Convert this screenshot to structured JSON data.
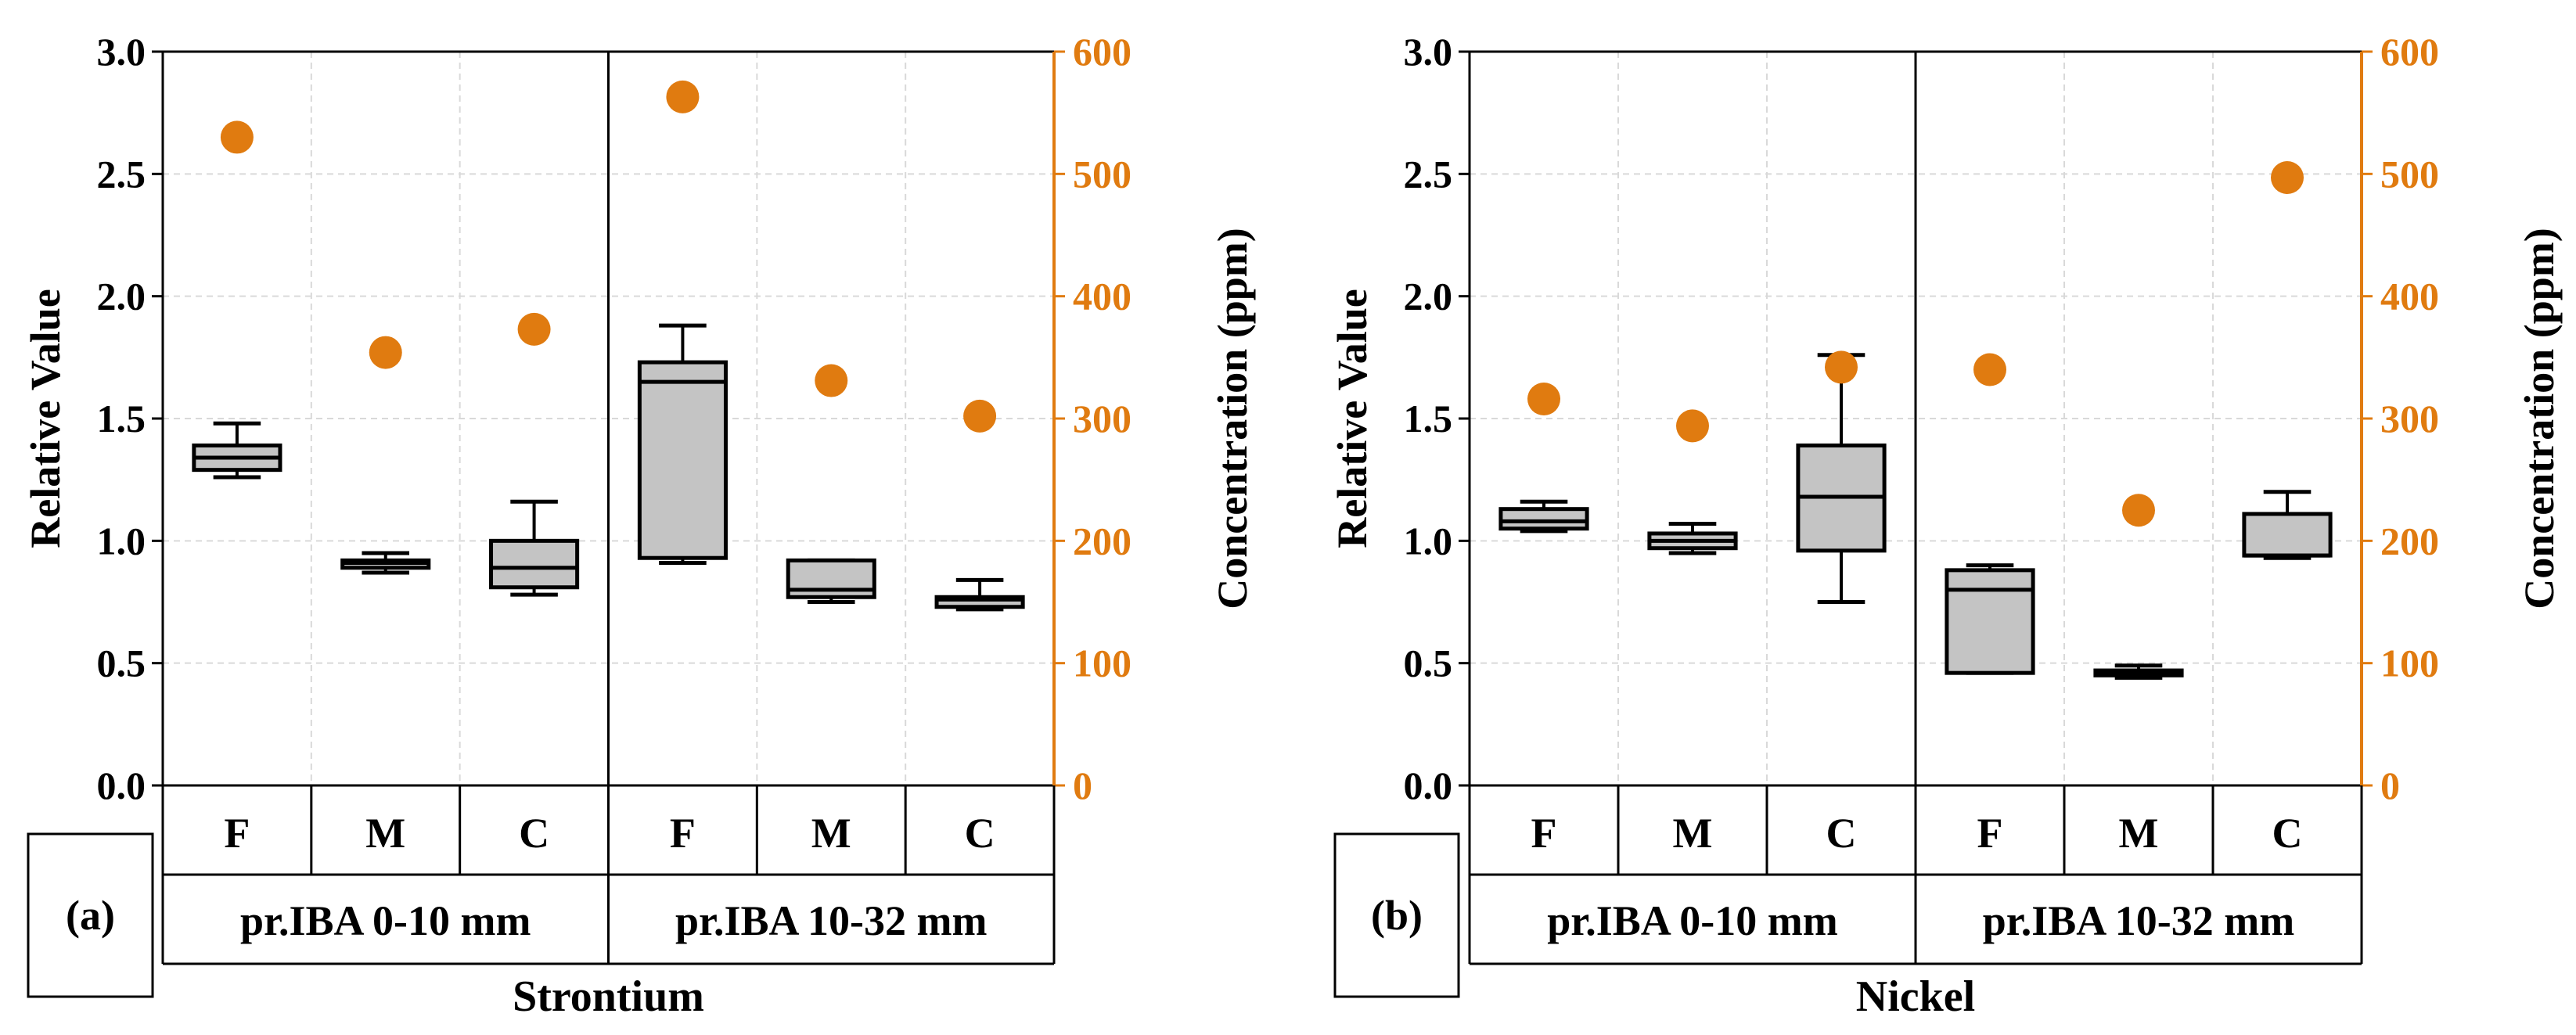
{
  "chart_data": [
    {
      "type": "box",
      "panel_label": "(a)",
      "title": "Strontium",
      "ylabel_left": "Relative Value",
      "ylabel_right": "Concentration (ppm)",
      "ylim_left": [
        0,
        3.0
      ],
      "ylim_right": [
        0,
        600
      ],
      "yticks_left": [
        "0.0",
        "0.5",
        "1.0",
        "1.5",
        "2.0",
        "2.5",
        "3.0"
      ],
      "yticks_right": [
        "0",
        "100",
        "200",
        "300",
        "400",
        "500",
        "600"
      ],
      "groups": [
        "pr.IBA 0-10 mm",
        "pr.IBA 10-32 mm"
      ],
      "categories": [
        "F",
        "M",
        "C",
        "F",
        "M",
        "C"
      ],
      "boxes": [
        {
          "min": 1.26,
          "q1": 1.29,
          "median": 1.34,
          "q3": 1.39,
          "max": 1.48
        },
        {
          "min": 0.87,
          "q1": 0.89,
          "median": 0.91,
          "q3": 0.92,
          "max": 0.95
        },
        {
          "min": 0.78,
          "q1": 0.81,
          "median": 0.89,
          "q3": 1.0,
          "max": 1.16
        },
        {
          "min": 0.91,
          "q1": 0.93,
          "median": 1.65,
          "q3": 1.73,
          "max": 1.88
        },
        {
          "min": 0.75,
          "q1": 0.77,
          "median": 0.8,
          "q3": 0.92,
          "max": 0.92
        },
        {
          "min": 0.72,
          "q1": 0.73,
          "median": 0.76,
          "q3": 0.77,
          "max": 0.84
        }
      ],
      "concentration": [
        530,
        354,
        373,
        563,
        331,
        302
      ]
    },
    {
      "type": "box",
      "panel_label": "(b)",
      "title": "Nickel",
      "ylabel_left": "Relative Value",
      "ylabel_right": "Concentration (ppm)",
      "ylim_left": [
        0,
        3.0
      ],
      "ylim_right": [
        0,
        600
      ],
      "yticks_left": [
        "0.0",
        "0.5",
        "1.0",
        "1.5",
        "2.0",
        "2.5",
        "3.0"
      ],
      "yticks_right": [
        "0",
        "100",
        "200",
        "300",
        "400",
        "500",
        "600"
      ],
      "groups": [
        "pr.IBA 0-10 mm",
        "pr.IBA 10-32 mm"
      ],
      "categories": [
        "F",
        "M",
        "C",
        "F",
        "M",
        "C"
      ],
      "boxes": [
        {
          "min": 1.04,
          "q1": 1.05,
          "median": 1.08,
          "q3": 1.13,
          "max": 1.16
        },
        {
          "min": 0.95,
          "q1": 0.97,
          "median": 1.0,
          "q3": 1.03,
          "max": 1.07
        },
        {
          "min": 0.75,
          "q1": 0.96,
          "median": 1.18,
          "q3": 1.39,
          "max": 1.76
        },
        {
          "min": 0.46,
          "q1": 0.46,
          "median": 0.8,
          "q3": 0.88,
          "max": 0.9
        },
        {
          "min": 0.44,
          "q1": 0.45,
          "median": 0.46,
          "q3": 0.47,
          "max": 0.49
        },
        {
          "min": 0.93,
          "q1": 0.94,
          "median": 0.94,
          "q3": 1.11,
          "max": 1.2
        }
      ],
      "concentration": [
        316,
        294,
        342,
        340,
        225,
        497
      ]
    }
  ],
  "colors": {
    "box_fill": "#c4c4c4",
    "dot": "#e07b10",
    "right_axis": "#e07b10",
    "axis": "#000000",
    "grid": "#d9d9d9"
  }
}
